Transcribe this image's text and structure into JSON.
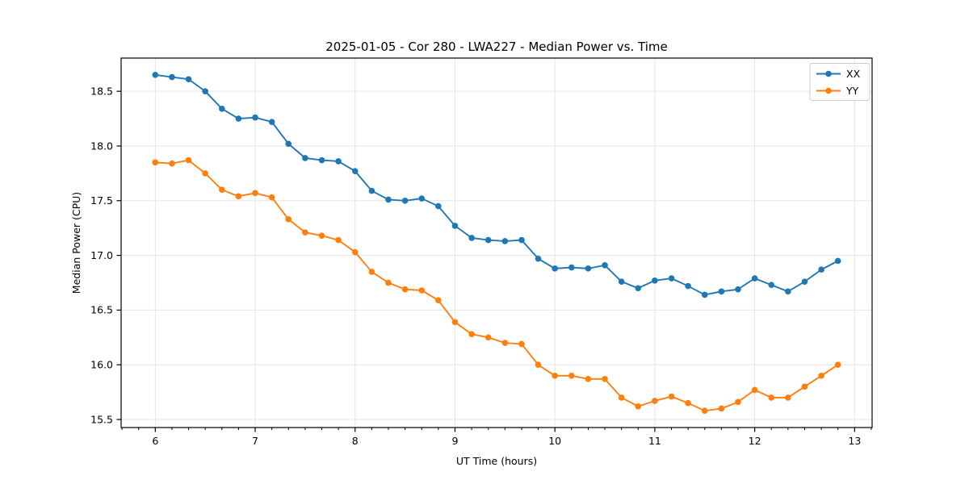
{
  "chart_data": {
    "type": "line",
    "title": "2025-01-05 - Cor 280 - LWA227 - Median Power vs. Time",
    "xlabel": "UT Time (hours)",
    "ylabel": "Median Power (CPU)",
    "legend_position": "upper right",
    "grid": true,
    "grid_color": "#e5e5e5",
    "background_color": "#ffffff",
    "spine_color": "#000000",
    "marker": "circle",
    "xlim": [
      5.658,
      13.175
    ],
    "ylim": [
      15.4265,
      18.8035
    ],
    "xticks": [
      6,
      7,
      8,
      9,
      10,
      11,
      12,
      13
    ],
    "yticks": [
      15.5,
      16.0,
      16.5,
      17.0,
      17.5,
      18.0,
      18.5
    ],
    "x_minor_divisions": 6,
    "x": [
      6.0,
      6.167,
      6.333,
      6.5,
      6.667,
      6.833,
      7.0,
      7.167,
      7.333,
      7.5,
      7.667,
      7.833,
      8.0,
      8.167,
      8.333,
      8.5,
      8.667,
      8.833,
      9.0,
      9.167,
      9.333,
      9.5,
      9.667,
      9.833,
      10.0,
      10.167,
      10.333,
      10.5,
      10.667,
      10.833,
      11.0,
      11.167,
      11.333,
      11.5,
      11.667,
      11.833,
      12.0,
      12.167,
      12.333,
      12.5,
      12.667,
      12.833
    ],
    "series": [
      {
        "name": "XX",
        "color": "#1f77b4",
        "values": [
          18.65,
          18.63,
          18.61,
          18.5,
          18.34,
          18.25,
          18.26,
          18.22,
          18.02,
          17.89,
          17.87,
          17.86,
          17.77,
          17.59,
          17.51,
          17.5,
          17.52,
          17.45,
          17.27,
          17.16,
          17.14,
          17.13,
          17.14,
          16.97,
          16.88,
          16.89,
          16.88,
          16.91,
          16.76,
          16.7,
          16.77,
          16.79,
          16.72,
          16.64,
          16.67,
          16.69,
          16.79,
          16.73,
          16.67,
          16.76,
          16.87,
          16.95
        ]
      },
      {
        "name": "YY",
        "color": "#ff7f0e",
        "values": [
          17.85,
          17.84,
          17.87,
          17.75,
          17.6,
          17.54,
          17.57,
          17.53,
          17.33,
          17.21,
          17.18,
          17.14,
          17.03,
          16.85,
          16.75,
          16.69,
          16.68,
          16.59,
          16.39,
          16.28,
          16.25,
          16.2,
          16.19,
          16.0,
          15.9,
          15.9,
          15.87,
          15.87,
          15.7,
          15.62,
          15.67,
          15.71,
          15.65,
          15.58,
          15.6,
          15.66,
          15.77,
          15.7,
          15.7,
          15.8,
          15.9,
          16.0
        ]
      }
    ]
  }
}
